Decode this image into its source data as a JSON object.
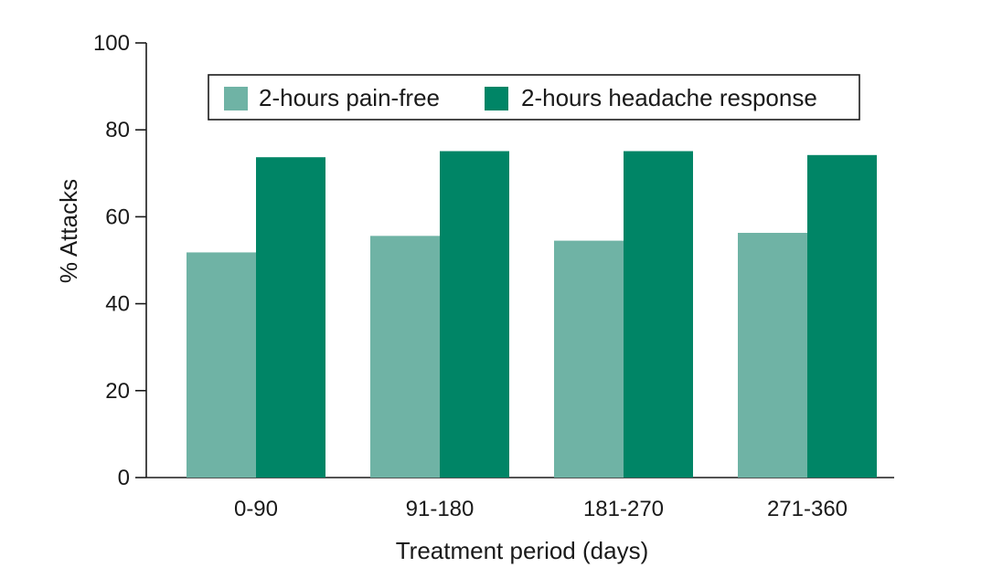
{
  "chart_data": {
    "type": "bar",
    "title": "",
    "xlabel": "Treatment period (days)",
    "ylabel": "% Attacks",
    "categories": [
      "0-90",
      "91-180",
      "181-270",
      "271-360"
    ],
    "series": [
      {
        "name": "2-hours pain-free",
        "values": [
          51.8,
          55.6,
          54.5,
          56.3
        ],
        "color": "#6fb3a5"
      },
      {
        "name": "2-hours headache response",
        "values": [
          73.7,
          75.1,
          75.1,
          74.2
        ],
        "color": "#008566"
      }
    ],
    "ylim": [
      0,
      100
    ],
    "yticks": [
      "0",
      "20",
      "40",
      "60",
      "80",
      "100"
    ],
    "grid": false,
    "legend_position": "top"
  }
}
